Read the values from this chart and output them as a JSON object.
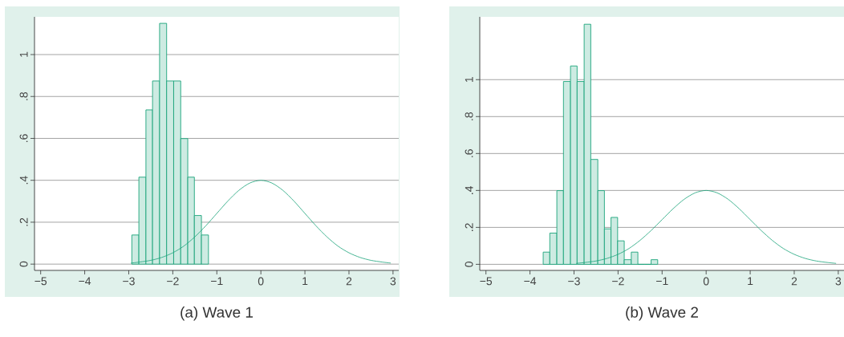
{
  "chart_data": [
    {
      "type": "histogram",
      "title": "(a) Wave 1",
      "xlim": [
        -5.14,
        3.13
      ],
      "ylim": [
        -0.03,
        1.18
      ],
      "xticks": [
        {
          "value": -5,
          "label": "−5"
        },
        {
          "value": -4,
          "label": "−4"
        },
        {
          "value": -3,
          "label": "−3"
        },
        {
          "value": -2,
          "label": "−2"
        },
        {
          "value": -1,
          "label": "−1"
        },
        0,
        1,
        2,
        3
      ],
      "yticks": [
        0,
        {
          "value": 0.2,
          "label": ".2"
        },
        {
          "value": 0.4,
          "label": ".4"
        },
        {
          "value": 0.6,
          "label": ".6"
        },
        {
          "value": 0.8,
          "label": ".8"
        },
        1
      ],
      "grid": "y",
      "series": [
        {
          "color": "#1aa37a",
          "bins": [
            -2.93,
            -2.77,
            -2.61,
            -2.46,
            -2.3,
            -2.14,
            -1.98,
            -1.82,
            -1.66,
            -1.51,
            -1.35,
            -1.19
          ],
          "values": [
            0.139,
            0.415,
            0.736,
            0.874,
            1.149,
            0.874,
            0.874,
            0.599,
            0.415,
            0.232,
            0.139
          ]
        },
        {
          "type": "line",
          "color": "#1aa37a",
          "x": [
            -2.95,
            -2.75,
            -2.5,
            -2.25,
            -2,
            -1.75,
            -1.5,
            -1.25,
            -1,
            -0.75,
            -0.5,
            -0.25,
            0,
            0.25,
            0.5,
            0.75,
            1,
            1.25,
            1.5,
            1.75,
            2,
            2.25,
            2.5,
            2.75,
            2.95
          ],
          "values": [
            0.005,
            0.01,
            0.018,
            0.032,
            0.054,
            0.086,
            0.13,
            0.183,
            0.242,
            0.301,
            0.352,
            0.387,
            0.4,
            0.387,
            0.352,
            0.301,
            0.242,
            0.183,
            0.13,
            0.086,
            0.054,
            0.032,
            0.018,
            0.01,
            0.005
          ]
        }
      ]
    },
    {
      "type": "histogram",
      "title": "(b) Wave 2",
      "xlim": [
        -5.14,
        3.13
      ],
      "ylim": [
        -0.033,
        1.34
      ],
      "xticks": [
        {
          "value": -5,
          "label": "−5"
        },
        {
          "value": -4,
          "label": "−4"
        },
        {
          "value": -3,
          "label": "−3"
        },
        {
          "value": -2,
          "label": "−2"
        },
        {
          "value": -1,
          "label": "−1"
        },
        0,
        1,
        2,
        3
      ],
      "yticks": [
        0,
        {
          "value": 0.2,
          "label": ".2"
        },
        {
          "value": 0.4,
          "label": ".4"
        },
        {
          "value": 0.6,
          "label": ".6"
        },
        {
          "value": 0.8,
          "label": ".8"
        },
        1
      ],
      "grid": "y",
      "series": [
        {
          "color": "#1aa37a",
          "bins": [
            -3.7,
            -3.55,
            -3.39,
            -3.24,
            -3.08,
            -2.93,
            -2.77,
            -2.62,
            -2.46,
            -2.31,
            -2.16,
            -2.01,
            -1.86,
            -1.7,
            -1.55,
            -1.4,
            -1.25,
            -1.1
          ],
          "values": [
            0.066,
            0.169,
            0.399,
            0.99,
            1.074,
            0.99,
            1.3,
            0.568,
            0.399,
            0.192,
            0.254,
            0.127,
            0.025,
            0.066,
            0,
            0,
            0.025
          ]
        },
        {
          "type": "line",
          "color": "#1aa37a",
          "x": [
            -2.95,
            -2.75,
            -2.5,
            -2.25,
            -2,
            -1.75,
            -1.5,
            -1.25,
            -1,
            -0.75,
            -0.5,
            -0.25,
            0,
            0.25,
            0.5,
            0.75,
            1,
            1.25,
            1.5,
            1.75,
            2,
            2.25,
            2.5,
            2.75,
            2.95
          ],
          "values": [
            0.005,
            0.01,
            0.018,
            0.032,
            0.054,
            0.086,
            0.13,
            0.183,
            0.242,
            0.301,
            0.352,
            0.387,
            0.4,
            0.387,
            0.352,
            0.301,
            0.242,
            0.183,
            0.13,
            0.086,
            0.054,
            0.032,
            0.018,
            0.01,
            0.005
          ]
        }
      ]
    }
  ]
}
